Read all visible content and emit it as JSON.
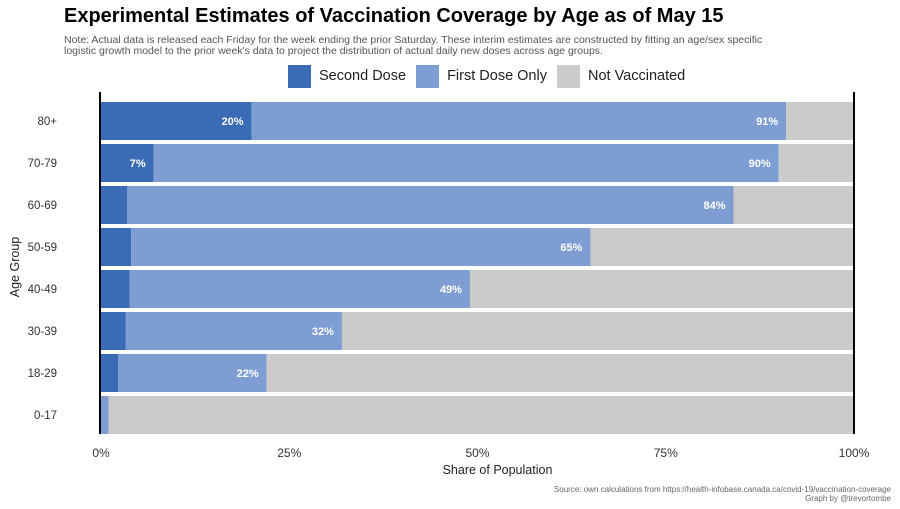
{
  "title": "Experimental Estimates of Vaccination Coverage by Age as of May 15",
  "subtitle": "Note: Actual data is released each Friday for the week ending the prior Saturday. These interim estimates are constructed by fitting an age/sex specific logistic growth model to the prior week's data to project the distribution of actual daily new doses across age groups.",
  "caption": {
    "source": "Source: own calculations from https://health-infobase.canada.ca/covid-19/vaccination-coverage",
    "credit": "Graph by @trevortombe"
  },
  "colors": {
    "second_dose": "#3A6BB5",
    "first_dose_only": "#7E9ED3",
    "not_vaccinated": "#CBCBCB",
    "label_text": "#FFFFFF"
  },
  "chart_data": {
    "type": "bar",
    "orientation": "horizontal",
    "stacked": true,
    "xlabel": "Share of Population",
    "ylabel": "Age Group",
    "xlim": [
      0,
      100
    ],
    "x_ticks": [
      "0%",
      "25%",
      "50%",
      "75%",
      "100%"
    ],
    "x_tick_values": [
      0,
      25,
      50,
      75,
      100
    ],
    "grid": false,
    "legend_position": "top",
    "legend": [
      "Second Dose",
      "First Dose Only",
      "Not Vaccinated"
    ],
    "categories": [
      "80+",
      "70-79",
      "60-69",
      "50-59",
      "40-49",
      "30-39",
      "18-29",
      "0-17"
    ],
    "series": [
      {
        "name": "Second Dose",
        "values": [
          20,
          7,
          3.5,
          4,
          3.8,
          3.3,
          2.3,
          0
        ]
      },
      {
        "name": "First Dose Only",
        "values": [
          71,
          83,
          80.5,
          61,
          45.2,
          28.7,
          19.7,
          1
        ]
      },
      {
        "name": "Not Vaccinated",
        "values": [
          9,
          10,
          16,
          35,
          51,
          68,
          78,
          99
        ]
      }
    ],
    "data_labels": [
      {
        "category": "80+",
        "second_dose": "20%",
        "total": "91%"
      },
      {
        "category": "70-79",
        "second_dose": "7%",
        "total": "90%"
      },
      {
        "category": "60-69",
        "second_dose": "",
        "total": "84%"
      },
      {
        "category": "50-59",
        "second_dose": "",
        "total": "65%"
      },
      {
        "category": "40-49",
        "second_dose": "",
        "total": "49%"
      },
      {
        "category": "30-39",
        "second_dose": "",
        "total": "32%"
      },
      {
        "category": "18-29",
        "second_dose": "",
        "total": "22%"
      },
      {
        "category": "0-17",
        "second_dose": "",
        "total": ""
      }
    ]
  }
}
